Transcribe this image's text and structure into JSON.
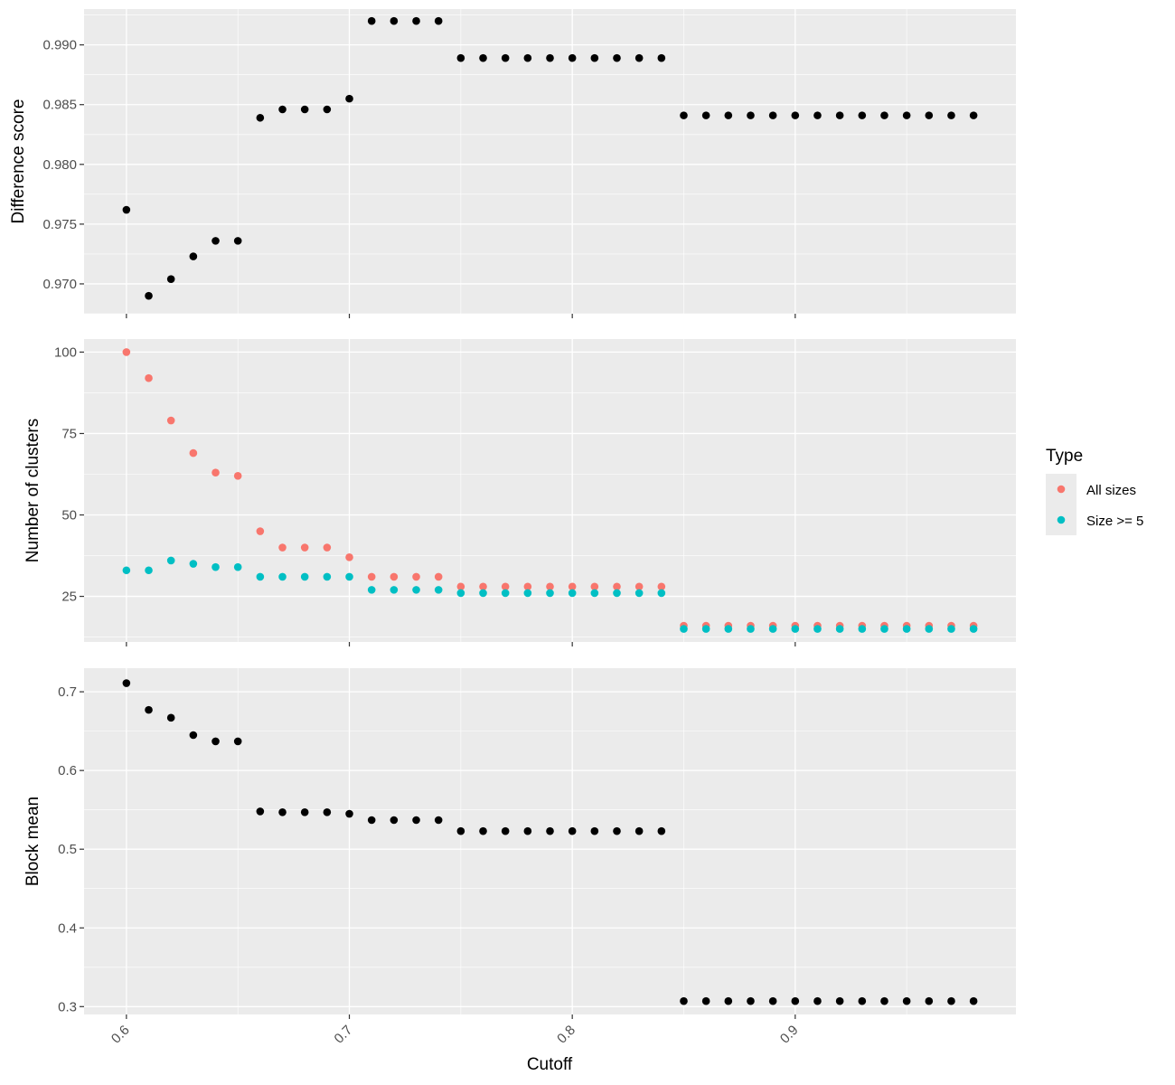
{
  "chart_data": [
    {
      "type": "scatter",
      "panel": "top",
      "ylabel": "Difference score",
      "ylim": [
        0.9675,
        0.993
      ],
      "yticks": [
        "0.970",
        "0.975",
        "0.980",
        "0.985",
        "0.990"
      ],
      "ytick_values": [
        0.97,
        0.975,
        0.98,
        0.985,
        0.99
      ],
      "grid": true,
      "series": [
        {
          "color": "#000000",
          "x": [
            0.6,
            0.61,
            0.62,
            0.63,
            0.64,
            0.65,
            0.66,
            0.67,
            0.68,
            0.69,
            0.7,
            0.71,
            0.72,
            0.73,
            0.74,
            0.75,
            0.76,
            0.77,
            0.78,
            0.79,
            0.8,
            0.81,
            0.82,
            0.83,
            0.84,
            0.85,
            0.86,
            0.87,
            0.88,
            0.89,
            0.9,
            0.91,
            0.92,
            0.93,
            0.94,
            0.95,
            0.96,
            0.97,
            0.98
          ],
          "y": [
            0.9762,
            0.969,
            0.9704,
            0.9723,
            0.9736,
            0.9736,
            0.9839,
            0.9846,
            0.9846,
            0.9846,
            0.9855,
            0.992,
            0.992,
            0.992,
            0.992,
            0.9889,
            0.9889,
            0.9889,
            0.9889,
            0.9889,
            0.9889,
            0.9889,
            0.9889,
            0.9889,
            0.9889,
            0.9841,
            0.9841,
            0.9841,
            0.9841,
            0.9841,
            0.9841,
            0.9841,
            0.9841,
            0.9841,
            0.9841,
            0.9841,
            0.9841,
            0.9841,
            0.9841
          ]
        }
      ]
    },
    {
      "type": "scatter",
      "panel": "middle",
      "ylabel": "Number of clusters",
      "ylim": [
        11,
        104
      ],
      "yticks": [
        "25",
        "50",
        "75",
        "100"
      ],
      "ytick_values": [
        25,
        50,
        75,
        100
      ],
      "grid": true,
      "legend": {
        "title": "Type",
        "position": "right"
      },
      "series": [
        {
          "name": "All sizes",
          "color": "#F8766D",
          "x": [
            0.6,
            0.61,
            0.62,
            0.63,
            0.64,
            0.65,
            0.66,
            0.67,
            0.68,
            0.69,
            0.7,
            0.71,
            0.72,
            0.73,
            0.74,
            0.75,
            0.76,
            0.77,
            0.78,
            0.79,
            0.8,
            0.81,
            0.82,
            0.83,
            0.84,
            0.85,
            0.86,
            0.87,
            0.88,
            0.89,
            0.9,
            0.91,
            0.92,
            0.93,
            0.94,
            0.95,
            0.96,
            0.97,
            0.98
          ],
          "y": [
            100,
            92,
            79,
            69,
            63,
            62,
            45,
            40,
            40,
            40,
            37,
            31,
            31,
            31,
            31,
            28,
            28,
            28,
            28,
            28,
            28,
            28,
            28,
            28,
            28,
            16,
            16,
            16,
            16,
            16,
            16,
            16,
            16,
            16,
            16,
            16,
            16,
            16,
            16
          ]
        },
        {
          "name": "Size >= 5",
          "color": "#00BFC4",
          "x": [
            0.6,
            0.61,
            0.62,
            0.63,
            0.64,
            0.65,
            0.66,
            0.67,
            0.68,
            0.69,
            0.7,
            0.71,
            0.72,
            0.73,
            0.74,
            0.75,
            0.76,
            0.77,
            0.78,
            0.79,
            0.8,
            0.81,
            0.82,
            0.83,
            0.84,
            0.85,
            0.86,
            0.87,
            0.88,
            0.89,
            0.9,
            0.91,
            0.92,
            0.93,
            0.94,
            0.95,
            0.96,
            0.97,
            0.98
          ],
          "y": [
            33,
            33,
            36,
            35,
            34,
            34,
            31,
            31,
            31,
            31,
            31,
            27,
            27,
            27,
            27,
            26,
            26,
            26,
            26,
            26,
            26,
            26,
            26,
            26,
            26,
            15,
            15,
            15,
            15,
            15,
            15,
            15,
            15,
            15,
            15,
            15,
            15,
            15,
            15
          ]
        }
      ]
    },
    {
      "type": "scatter",
      "panel": "bottom",
      "ylabel": "Block mean",
      "xlabel": "Cutoff",
      "ylim": [
        0.29,
        0.73
      ],
      "yticks": [
        "0.3",
        "0.4",
        "0.5",
        "0.6",
        "0.7"
      ],
      "ytick_values": [
        0.3,
        0.4,
        0.5,
        0.6,
        0.7
      ],
      "grid": true,
      "series": [
        {
          "color": "#000000",
          "x": [
            0.6,
            0.61,
            0.62,
            0.63,
            0.64,
            0.65,
            0.66,
            0.67,
            0.68,
            0.69,
            0.7,
            0.71,
            0.72,
            0.73,
            0.74,
            0.75,
            0.76,
            0.77,
            0.78,
            0.79,
            0.8,
            0.81,
            0.82,
            0.83,
            0.84,
            0.85,
            0.86,
            0.87,
            0.88,
            0.89,
            0.9,
            0.91,
            0.92,
            0.93,
            0.94,
            0.95,
            0.96,
            0.97,
            0.98
          ],
          "y": [
            0.711,
            0.677,
            0.667,
            0.645,
            0.637,
            0.637,
            0.548,
            0.547,
            0.547,
            0.547,
            0.545,
            0.537,
            0.537,
            0.537,
            0.537,
            0.523,
            0.523,
            0.523,
            0.523,
            0.523,
            0.523,
            0.523,
            0.523,
            0.523,
            0.523,
            0.307,
            0.307,
            0.307,
            0.307,
            0.307,
            0.307,
            0.307,
            0.307,
            0.307,
            0.307,
            0.307,
            0.307,
            0.307,
            0.307
          ]
        }
      ]
    }
  ],
  "x_axis": {
    "label": "Cutoff",
    "xlim": [
      0.581,
      0.999
    ],
    "ticks": [
      "0.6",
      "0.7",
      "0.8",
      "0.9"
    ],
    "tick_values": [
      0.6,
      0.7,
      0.8,
      0.9
    ]
  },
  "legend": {
    "title": "Type",
    "items": [
      {
        "label": "All sizes",
        "color": "#F8766D"
      },
      {
        "label": "Size >= 5",
        "color": "#00BFC4"
      }
    ]
  },
  "colors": {
    "panel_bg": "#EBEBEB",
    "grid": "#FFFFFF",
    "axis_tick": "#333333"
  }
}
